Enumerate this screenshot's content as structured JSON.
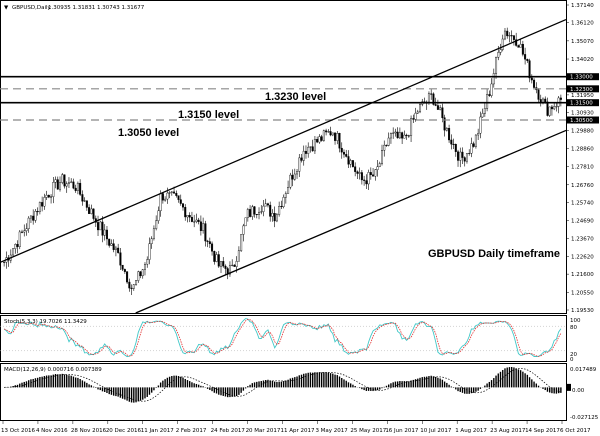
{
  "header": {
    "symbol": "GBPUSD,Daily",
    "ohlc": "1.30935 1.31831 1.30743 1.31677"
  },
  "chart_data": [
    {
      "type": "candlestick",
      "title": "GBPUSD,Daily",
      "annotation": "GBPUSD Daily timeframe",
      "ylim": [
        1.1953,
        1.3714
      ],
      "price_ticks": [
        "1.37140",
        "1.36120",
        "1.35070",
        "1.34020",
        "1.29880",
        "1.28860",
        "1.27810",
        "1.26760",
        "1.25740",
        "1.24690",
        "1.23670",
        "1.22620",
        "1.21600",
        "1.20550",
        "1.19530",
        "1.31950",
        "1.30930"
      ],
      "levels": [
        {
          "price": "1.33000",
          "style": "solid",
          "label": ""
        },
        {
          "price": "1.32300",
          "style": "dashed",
          "label": "1.3230 level"
        },
        {
          "price": "1.31500",
          "style": "solid",
          "label": "1.3150 level"
        },
        {
          "price": "1.30500",
          "style": "dashed",
          "label": "1.3050 level"
        }
      ],
      "channel": {
        "upper": [
          [
            "13 Oct 2016",
            1.2235
          ],
          [
            "6 Oct 2017",
            1.362
          ]
        ],
        "lower": [
          [
            "11 Jan 2017",
            1.1953
          ],
          [
            "6 Oct 2017",
            1.298
          ]
        ]
      },
      "approx_close_path": [
        1.223,
        1.236,
        1.25,
        1.262,
        1.27,
        1.267,
        1.253,
        1.239,
        1.227,
        1.207,
        1.224,
        1.262,
        1.259,
        1.25,
        1.241,
        1.221,
        1.218,
        1.25,
        1.256,
        1.25,
        1.27,
        1.288,
        1.293,
        1.299,
        1.285,
        1.27,
        1.273,
        1.296,
        1.293,
        1.311,
        1.319,
        1.299,
        1.282,
        1.293,
        1.322,
        1.357,
        1.351,
        1.328,
        1.311,
        1.3168
      ],
      "x_labels": [
        "13 Oct 2016",
        "4 Nov 2016",
        "28 Nov 2016",
        "20 Dec 2016",
        "11 Jan 2017",
        "2 Feb 2017",
        "24 Feb 2017",
        "20 Mar 2017",
        "11 Apr 2017",
        "3 May 2017",
        "25 May 2017",
        "16 Jun 2017",
        "10 Jul 2017",
        "1 Aug 2017",
        "23 Aug 2017",
        "14 Sep 2017",
        "6 Oct 2017"
      ]
    },
    {
      "type": "line",
      "title": "Stoch(5,3,3) 19.7026 11.3429",
      "ylim": [
        0,
        100
      ],
      "ticks": [
        "100",
        "80",
        "20",
        "0"
      ],
      "series_colors": {
        "main": "#40c8c8",
        "signal": "#e03030"
      }
    },
    {
      "type": "bar",
      "title": "MACD(12,26,9) 0.000716 0.007389",
      "ticks": [
        "0.017489",
        "0.00",
        "-0.027125"
      ],
      "ylim": [
        -0.027125,
        0.017489
      ]
    }
  ]
}
